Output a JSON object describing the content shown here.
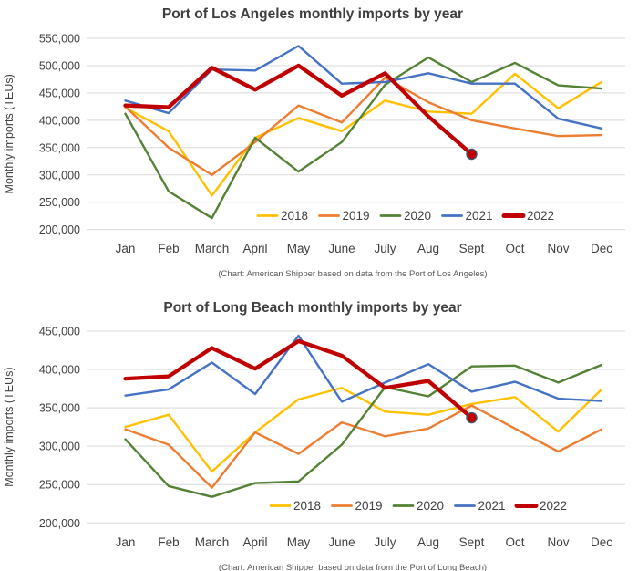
{
  "page_bg": "#ffffff",
  "text_colors": {
    "title": "#3f3f3f",
    "tick": "#404040",
    "caption": "#595959"
  },
  "grid_color": "#d9d9d9",
  "chart_data": [
    {
      "type": "line",
      "title": "Port of Los Angeles monthly imports by year",
      "caption": "(Chart: American Shipper based on data from the Port of Los Angeles)",
      "ylabel": "Monthly imports (TEUs)",
      "xlabel": "",
      "grid": true,
      "legend_position": "inside-bottom",
      "ylim": [
        200000,
        550000
      ],
      "y_tick_labels": [
        "550,000",
        "500,000",
        "450,000",
        "400,000",
        "350,000",
        "300,000",
        "250,000",
        "200,000"
      ],
      "categories": [
        "Jan",
        "Feb",
        "March",
        "April",
        "May",
        "June",
        "July",
        "Aug",
        "Sept",
        "Oct",
        "Nov",
        "Dec"
      ],
      "series": [
        {
          "name": "2018",
          "color": "#FFC000",
          "emphasis": false,
          "end_marker": false,
          "values": [
            423000,
            380000,
            262000,
            368000,
            404000,
            380000,
            436000,
            416000,
            412000,
            485000,
            422000,
            470000
          ]
        },
        {
          "name": "2019",
          "color": "#ED7D31",
          "emphasis": false,
          "end_marker": false,
          "values": [
            425000,
            350000,
            300000,
            360000,
            427000,
            396000,
            478000,
            433000,
            400000,
            385000,
            371000,
            373000
          ]
        },
        {
          "name": "2020",
          "color": "#548235",
          "emphasis": false,
          "end_marker": false,
          "values": [
            412000,
            270000,
            221000,
            368000,
            306000,
            360000,
            465000,
            515000,
            470000,
            505000,
            464000,
            458000
          ]
        },
        {
          "name": "2021",
          "color": "#4472C4",
          "emphasis": false,
          "end_marker": false,
          "values": [
            436000,
            413000,
            493000,
            491000,
            536000,
            467000,
            470000,
            486000,
            467000,
            467000,
            403000,
            385000
          ]
        },
        {
          "name": "2022",
          "color": "#C00000",
          "emphasis": true,
          "end_marker": true,
          "values": [
            427000,
            424000,
            496000,
            456000,
            500000,
            445000,
            486000,
            407000,
            338000,
            null,
            null,
            null
          ]
        }
      ]
    },
    {
      "type": "line",
      "title": "Port of Long Beach monthly imports by year",
      "caption": "(Chart: American Shipper based on data from the Port of Long Beach)",
      "ylabel": "Monthly imports (TEUs)",
      "xlabel": "",
      "grid": true,
      "legend_position": "inside-bottom",
      "ylim": [
        200000,
        450000
      ],
      "y_tick_labels": [
        "450,000",
        "400,000",
        "350,000",
        "300,000",
        "250,000",
        "200,000"
      ],
      "categories": [
        "Jan",
        "Feb",
        "March",
        "April",
        "May",
        "June",
        "July",
        "Aug",
        "Sept",
        "Oct",
        "Nov",
        "Dec"
      ],
      "series": [
        {
          "name": "2018",
          "color": "#FFC000",
          "emphasis": false,
          "end_marker": false,
          "values": [
            325000,
            341000,
            267000,
            318000,
            361000,
            376000,
            345000,
            341000,
            355000,
            364000,
            319000,
            374000
          ]
        },
        {
          "name": "2019",
          "color": "#ED7D31",
          "emphasis": false,
          "end_marker": false,
          "values": [
            322000,
            302000,
            246000,
            318000,
            290000,
            331000,
            313000,
            323000,
            353000,
            323000,
            293000,
            322000
          ]
        },
        {
          "name": "2020",
          "color": "#548235",
          "emphasis": false,
          "end_marker": false,
          "values": [
            309000,
            248000,
            234000,
            252000,
            254000,
            302000,
            377000,
            365000,
            404000,
            405000,
            383000,
            406000
          ]
        },
        {
          "name": "2021",
          "color": "#4472C4",
          "emphasis": false,
          "end_marker": false,
          "values": [
            366000,
            374000,
            409000,
            368000,
            444000,
            358000,
            383000,
            407000,
            371000,
            384000,
            362000,
            359000
          ]
        },
        {
          "name": "2022",
          "color": "#C00000",
          "emphasis": true,
          "end_marker": true,
          "values": [
            388000,
            391000,
            428000,
            401000,
            437000,
            418000,
            376000,
            385000,
            337000,
            null,
            null,
            null
          ]
        }
      ]
    }
  ]
}
